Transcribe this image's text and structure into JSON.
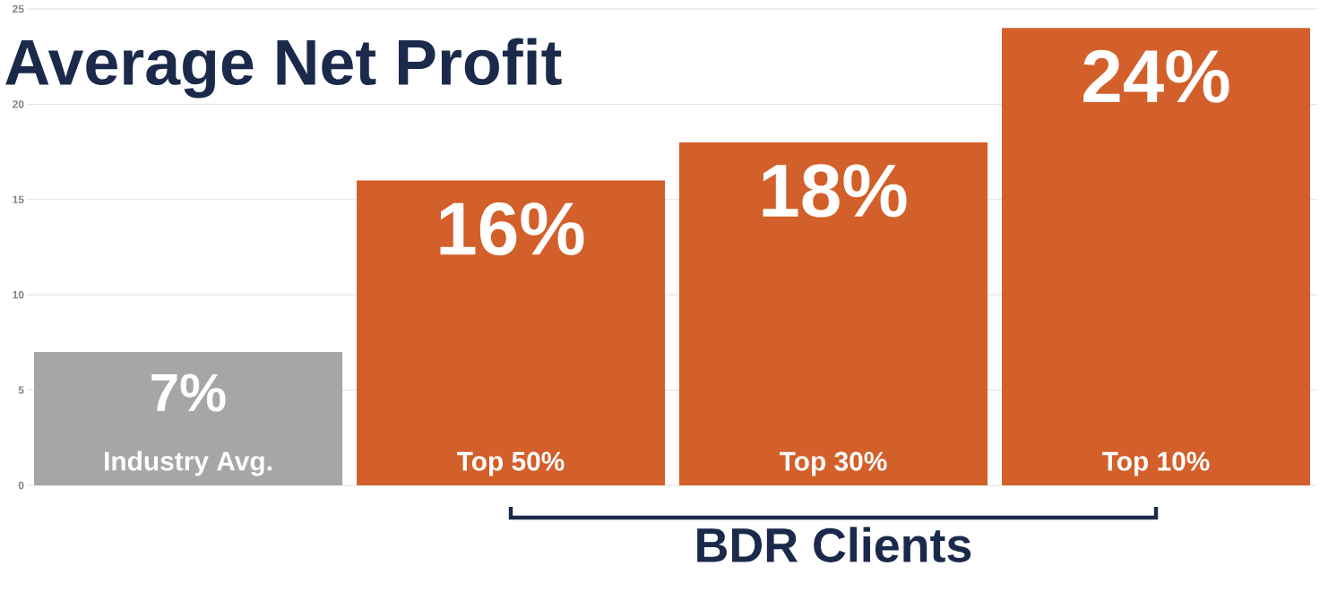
{
  "chart_data": {
    "type": "bar",
    "title": "Average Net Profit",
    "categories": [
      "Industry Avg.",
      "Top 50%",
      "Top 30%",
      "Top 10%"
    ],
    "values": [
      7,
      16,
      18,
      24
    ],
    "value_labels": [
      "7%",
      "16%",
      "18%",
      "24%"
    ],
    "colors": [
      "#a6a6a6",
      "#d35f2a",
      "#d35f2a",
      "#d35f2a"
    ],
    "ylim": [
      0,
      25
    ],
    "yticks": [
      0,
      5,
      10,
      15,
      20,
      25
    ],
    "grid": "y",
    "annotations": [
      {
        "text": "BDR Clients"
      }
    ]
  }
}
